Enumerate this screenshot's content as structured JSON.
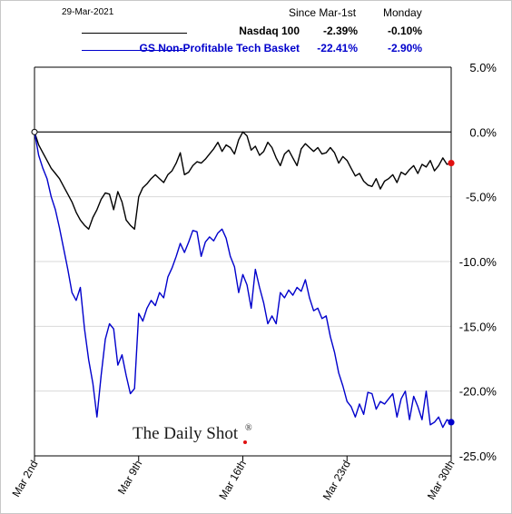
{
  "header": {
    "date": "29-Mar-2021",
    "col1": "Since Mar-1st",
    "col2": "Monday"
  },
  "legend": [
    {
      "name": "Nasdaq 100",
      "since": "-2.39%",
      "monday": "-0.10%",
      "color": "#000000"
    },
    {
      "name": "GS Non-Profitable Tech Basket",
      "since": "-22.41%",
      "monday": "-2.90%",
      "color": "#0000cc"
    }
  ],
  "watermark": "The Daily Shot",
  "watermark_mark": "®",
  "chart_data": {
    "type": "line",
    "x_unit": "trading sessions since Mar 2nd",
    "xlim": [
      0,
      20
    ],
    "ylim": [
      -25,
      5
    ],
    "y_ticks": [
      {
        "value": 5,
        "label": "5.0%"
      },
      {
        "value": 0,
        "label": "0.0%"
      },
      {
        "value": -5,
        "label": "-5.0%"
      },
      {
        "value": -10,
        "label": "-10.0%"
      },
      {
        "value": -15,
        "label": "-15.0%"
      },
      {
        "value": -20,
        "label": "-20.0%"
      },
      {
        "value": -25,
        "label": "-25.0%"
      }
    ],
    "x_ticks": [
      {
        "value": 0,
        "label": "Mar 2nd"
      },
      {
        "value": 5,
        "label": "Mar 9th"
      },
      {
        "value": 10,
        "label": "Mar 16th"
      },
      {
        "value": 15,
        "label": "Mar 23rd"
      },
      {
        "value": 20,
        "label": "Mar 30th"
      }
    ],
    "gridlines": "horizontal",
    "series": [
      {
        "name": "Nasdaq 100",
        "color": "#000000",
        "x": [
          0,
          0.2,
          0.4,
          0.6,
          0.8,
          1.0,
          1.2,
          1.4,
          1.6,
          1.8,
          2.0,
          2.2,
          2.4,
          2.6,
          2.8,
          3.0,
          3.2,
          3.4,
          3.6,
          3.8,
          4.0,
          4.2,
          4.4,
          4.6,
          4.8,
          5.0,
          5.2,
          5.4,
          5.6,
          5.8,
          6.0,
          6.2,
          6.4,
          6.6,
          6.8,
          7.0,
          7.2,
          7.4,
          7.6,
          7.8,
          8.0,
          8.2,
          8.4,
          8.6,
          8.8,
          9.0,
          9.2,
          9.4,
          9.6,
          9.8,
          10.0,
          10.2,
          10.4,
          10.6,
          10.8,
          11.0,
          11.2,
          11.4,
          11.6,
          11.8,
          12.0,
          12.2,
          12.4,
          12.6,
          12.8,
          13.0,
          13.2,
          13.4,
          13.6,
          13.8,
          14.0,
          14.2,
          14.4,
          14.6,
          14.8,
          15.0,
          15.2,
          15.4,
          15.6,
          15.8,
          16.0,
          16.2,
          16.4,
          16.6,
          16.8,
          17.0,
          17.2,
          17.4,
          17.6,
          17.8,
          18.0,
          18.2,
          18.4,
          18.6,
          18.8,
          19.0,
          19.2,
          19.4,
          19.6,
          19.8,
          20.0
        ],
        "values": [
          0.0,
          -1.0,
          -1.6,
          -2.2,
          -2.8,
          -3.2,
          -3.6,
          -4.2,
          -4.8,
          -5.4,
          -6.2,
          -6.8,
          -7.2,
          -7.5,
          -6.6,
          -6.0,
          -5.2,
          -4.7,
          -4.8,
          -6.0,
          -4.6,
          -5.4,
          -6.8,
          -7.2,
          -7.5,
          -5.0,
          -4.3,
          -4.0,
          -3.6,
          -3.3,
          -3.6,
          -3.9,
          -3.3,
          -3.0,
          -2.4,
          -1.6,
          -3.3,
          -3.1,
          -2.6,
          -2.3,
          -2.4,
          -2.1,
          -1.7,
          -1.3,
          -0.8,
          -1.5,
          -1.0,
          -1.2,
          -1.7,
          -0.6,
          0.0,
          -0.3,
          -1.4,
          -1.1,
          -1.8,
          -1.5,
          -0.8,
          -1.2,
          -2.0,
          -2.6,
          -1.7,
          -1.4,
          -2.0,
          -2.6,
          -1.3,
          -0.9,
          -1.2,
          -1.5,
          -1.2,
          -1.7,
          -1.6,
          -1.2,
          -1.6,
          -2.4,
          -1.9,
          -2.2,
          -2.8,
          -3.4,
          -3.2,
          -3.8,
          -4.1,
          -4.2,
          -3.6,
          -4.4,
          -3.8,
          -3.6,
          -3.3,
          -3.9,
          -3.1,
          -3.3,
          -2.9,
          -2.6,
          -3.2,
          -2.5,
          -2.7,
          -2.2,
          -3.0,
          -2.6,
          -2.0,
          -2.5,
          -2.4
        ]
      },
      {
        "name": "GS Non-Profitable Tech Basket",
        "color": "#0000cc",
        "x": [
          0,
          0.2,
          0.4,
          0.6,
          0.8,
          1.0,
          1.2,
          1.4,
          1.6,
          1.8,
          2.0,
          2.2,
          2.4,
          2.6,
          2.8,
          3.0,
          3.2,
          3.4,
          3.6,
          3.8,
          4.0,
          4.2,
          4.4,
          4.6,
          4.8,
          5.0,
          5.2,
          5.4,
          5.6,
          5.8,
          6.0,
          6.2,
          6.4,
          6.6,
          6.8,
          7.0,
          7.2,
          7.4,
          7.6,
          7.8,
          8.0,
          8.2,
          8.4,
          8.6,
          8.8,
          9.0,
          9.2,
          9.4,
          9.6,
          9.8,
          10.0,
          10.2,
          10.4,
          10.6,
          10.8,
          11.0,
          11.2,
          11.4,
          11.6,
          11.8,
          12.0,
          12.2,
          12.4,
          12.6,
          12.8,
          13.0,
          13.2,
          13.4,
          13.6,
          13.8,
          14.0,
          14.2,
          14.4,
          14.6,
          14.8,
          15.0,
          15.2,
          15.4,
          15.6,
          15.8,
          16.0,
          16.2,
          16.4,
          16.6,
          16.8,
          17.0,
          17.2,
          17.4,
          17.6,
          17.8,
          18.0,
          18.2,
          18.4,
          18.6,
          18.8,
          19.0,
          19.2,
          19.4,
          19.6,
          19.8,
          20.0
        ],
        "values": [
          0.0,
          -1.8,
          -2.8,
          -3.6,
          -5.0,
          -6.0,
          -7.4,
          -9.0,
          -10.6,
          -12.4,
          -13.0,
          -12.0,
          -15.2,
          -17.6,
          -19.4,
          -22.0,
          -18.8,
          -16.0,
          -14.8,
          -15.2,
          -18.0,
          -17.2,
          -18.8,
          -20.2,
          -19.8,
          -14.0,
          -14.6,
          -13.6,
          -13.0,
          -13.4,
          -12.4,
          -12.8,
          -11.2,
          -10.5,
          -9.6,
          -8.6,
          -9.3,
          -8.5,
          -7.6,
          -7.7,
          -9.6,
          -8.5,
          -8.1,
          -8.4,
          -7.8,
          -7.5,
          -8.2,
          -9.6,
          -10.4,
          -12.4,
          -11.0,
          -11.8,
          -13.6,
          -10.6,
          -12.0,
          -13.2,
          -14.8,
          -14.2,
          -14.8,
          -12.4,
          -12.8,
          -12.2,
          -12.6,
          -12.0,
          -12.3,
          -11.4,
          -12.8,
          -13.8,
          -13.6,
          -14.4,
          -14.2,
          -15.8,
          -17.0,
          -18.6,
          -19.6,
          -20.8,
          -21.2,
          -22.0,
          -21.0,
          -21.8,
          -20.1,
          -20.2,
          -21.4,
          -20.8,
          -21.0,
          -20.6,
          -20.2,
          -22.0,
          -20.6,
          -20.0,
          -22.2,
          -20.4,
          -21.2,
          -22.2,
          -20.0,
          -22.6,
          -22.4,
          -22.0,
          -22.8,
          -22.2,
          -22.4
        ]
      }
    ],
    "end_markers": [
      {
        "series": "Nasdaq 100",
        "color": "#e01010"
      },
      {
        "series": "GS Non-Profitable Tech Basket",
        "color": "#0000cc"
      }
    ],
    "start_marker": true
  }
}
